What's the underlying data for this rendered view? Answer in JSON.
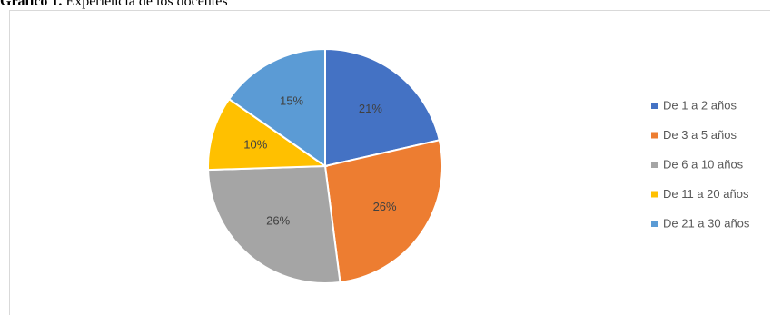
{
  "caption": {
    "label": "Gráfico 1.",
    "text": "Experiencia de los docentes"
  },
  "chart_data": {
    "type": "pie",
    "categories": [
      "De 1 a 2 años",
      "De 3 a 5 años",
      "De 6 a 10 años",
      "De 11 a 20 años",
      "De 21 a 30 años"
    ],
    "values": [
      21,
      26,
      26,
      10,
      15
    ],
    "data_labels": [
      "21%",
      "26%",
      "26%",
      "10%",
      "15%"
    ],
    "colors": [
      "#4472C4",
      "#ED7D31",
      "#A5A5A5",
      "#FFC000",
      "#5B9BD5"
    ],
    "legend_position": "right",
    "start_angle": "top",
    "direction": "clockwise"
  }
}
